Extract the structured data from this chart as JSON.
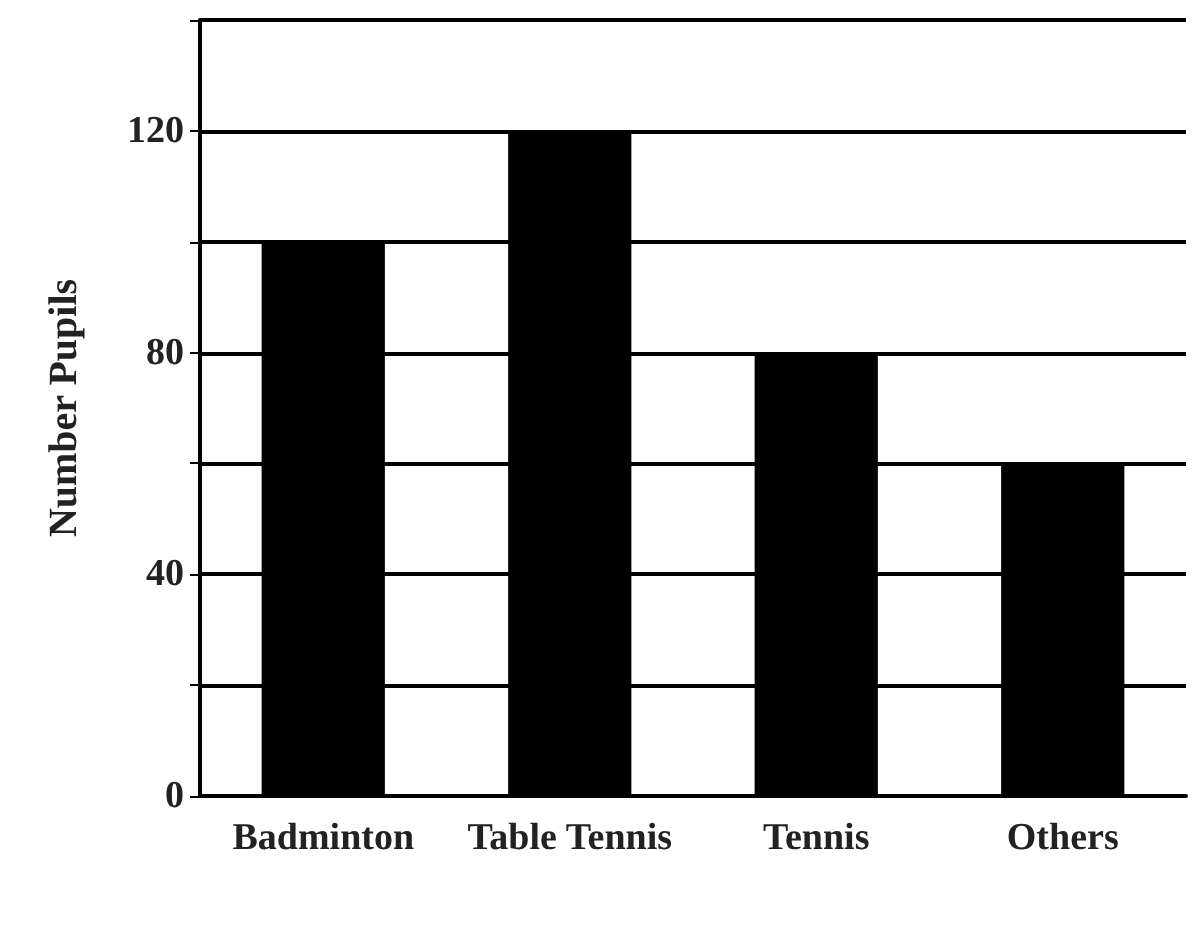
{
  "chart_data": {
    "type": "bar",
    "ylabel": "Number Pupils",
    "categories": [
      "Badminton",
      "Table Tennis",
      "Tennis",
      "Others"
    ],
    "values": [
      100,
      120,
      80,
      60
    ],
    "color": "#000000",
    "ylim": [
      0,
      140
    ],
    "yticks": [
      0,
      {
        "value": 20,
        "label": null
      },
      40,
      {
        "value": 60,
        "label": null
      },
      80,
      {
        "value": 100,
        "label": null
      },
      120,
      {
        "value": 140,
        "label": null
      }
    ],
    "grid": "y"
  }
}
